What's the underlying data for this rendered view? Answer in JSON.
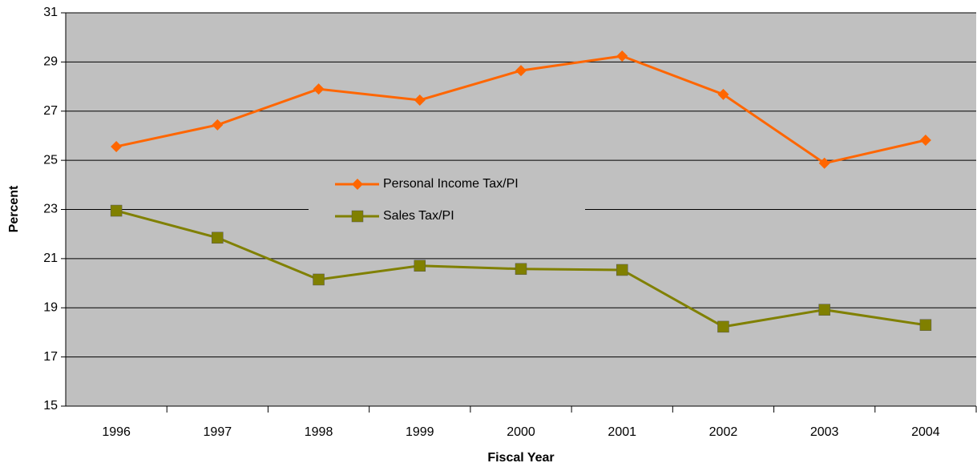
{
  "chart_data": {
    "type": "line",
    "x_label": "Fiscal Year",
    "y_label": "Percent",
    "categories": [
      "1996",
      "1997",
      "1998",
      "1999",
      "2000",
      "2001",
      "2002",
      "2003",
      "2004"
    ],
    "series": [
      {
        "name": "Personal Income Tax/PI",
        "color": "#ff6600",
        "marker": "diamond",
        "values": [
          25.56,
          26.44,
          27.9,
          27.45,
          28.65,
          29.24,
          27.68,
          24.88,
          25.82
        ]
      },
      {
        "name": "Sales Tax/PI",
        "color": "#808000",
        "marker": "square",
        "values": [
          22.95,
          21.85,
          20.15,
          20.71,
          20.58,
          20.54,
          18.23,
          18.92,
          18.3
        ]
      }
    ],
    "ylim": [
      15,
      31
    ],
    "yticks": [
      15,
      17,
      19,
      21,
      23,
      25,
      27,
      29,
      31
    ],
    "grid": true,
    "legend": "center"
  }
}
